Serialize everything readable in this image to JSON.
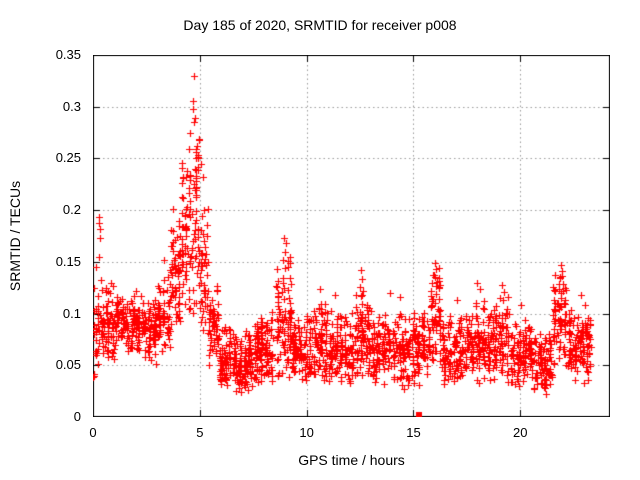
{
  "chart_data": {
    "type": "scatter",
    "title": "Day 185 of 2020, SRMTID for receiver p008",
    "xlabel": "GPS time / hours",
    "ylabel": "SRMTID / TECUs",
    "xlim": [
      0,
      24.2
    ],
    "ylim": [
      0,
      0.35
    ],
    "xticks": [
      {
        "v": 0,
        "label": "0"
      },
      {
        "v": 5,
        "label": "5"
      },
      {
        "v": 10,
        "label": "10"
      },
      {
        "v": 15,
        "label": "15"
      },
      {
        "v": 20,
        "label": "20"
      }
    ],
    "yticks": [
      {
        "v": 0,
        "label": "0"
      },
      {
        "v": 0.05,
        "label": "0.05"
      },
      {
        "v": 0.1,
        "label": "0.1"
      },
      {
        "v": 0.15,
        "label": "0.15"
      },
      {
        "v": 0.2,
        "label": "0.2"
      },
      {
        "v": 0.25,
        "label": "0.25"
      },
      {
        "v": 0.3,
        "label": "0.3"
      },
      {
        "v": 0.35,
        "label": "0.35"
      }
    ],
    "grid": true,
    "legend": "none",
    "marker": "plus",
    "marker_color": "#ff0000",
    "grid_color": "#999999",
    "axis_color": "#000000",
    "seed": 185,
    "envelope_segments": [
      [
        0.0,
        0.3,
        30,
        0.03,
        0.135
      ],
      [
        0.3,
        1.0,
        70,
        0.05,
        0.135
      ],
      [
        1.0,
        2.0,
        100,
        0.06,
        0.125
      ],
      [
        2.0,
        3.0,
        100,
        0.048,
        0.12
      ],
      [
        3.0,
        3.6,
        60,
        0.055,
        0.14
      ],
      [
        3.6,
        4.1,
        60,
        0.07,
        0.21
      ],
      [
        4.1,
        4.6,
        60,
        0.08,
        0.28
      ],
      [
        4.6,
        5.0,
        50,
        0.085,
        0.33
      ],
      [
        5.0,
        5.4,
        45,
        0.07,
        0.23
      ],
      [
        5.4,
        5.9,
        50,
        0.04,
        0.13
      ],
      [
        5.9,
        6.5,
        70,
        0.02,
        0.09
      ],
      [
        6.5,
        7.5,
        110,
        0.02,
        0.085
      ],
      [
        7.5,
        8.5,
        110,
        0.025,
        0.105
      ],
      [
        8.5,
        9.3,
        90,
        0.03,
        0.16
      ],
      [
        9.3,
        10.3,
        100,
        0.03,
        0.1
      ],
      [
        10.3,
        11.0,
        80,
        0.025,
        0.115
      ],
      [
        11.0,
        12.2,
        120,
        0.025,
        0.105
      ],
      [
        12.2,
        13.0,
        90,
        0.03,
        0.125
      ],
      [
        13.0,
        14.2,
        120,
        0.03,
        0.105
      ],
      [
        14.2,
        15.1,
        90,
        0.025,
        0.105
      ],
      [
        15.1,
        15.8,
        70,
        0.03,
        0.11
      ],
      [
        15.8,
        16.3,
        55,
        0.04,
        0.15
      ],
      [
        16.3,
        17.6,
        130,
        0.03,
        0.1
      ],
      [
        17.6,
        18.4,
        80,
        0.03,
        0.115
      ],
      [
        18.4,
        19.5,
        110,
        0.03,
        0.12
      ],
      [
        19.5,
        20.6,
        110,
        0.025,
        0.095
      ],
      [
        20.6,
        21.5,
        90,
        0.015,
        0.09
      ],
      [
        21.5,
        22.2,
        70,
        0.04,
        0.148
      ],
      [
        22.2,
        23.3,
        120,
        0.03,
        0.105
      ]
    ],
    "outlier_points": [
      [
        0.28,
        0.193
      ],
      [
        0.3,
        0.188
      ],
      [
        0.31,
        0.182
      ],
      [
        0.33,
        0.173
      ],
      [
        0.3,
        0.155
      ],
      [
        0.12,
        0.145
      ],
      [
        3.3,
        0.152
      ],
      [
        4.73,
        0.33
      ],
      [
        4.66,
        0.306
      ],
      [
        4.7,
        0.298
      ],
      [
        4.79,
        0.289
      ],
      [
        4.55,
        0.275
      ],
      [
        4.85,
        0.262
      ],
      [
        5.05,
        0.245
      ],
      [
        5.15,
        0.232
      ],
      [
        8.95,
        0.173
      ],
      [
        9.02,
        0.168
      ],
      [
        9.0,
        0.16
      ],
      [
        8.9,
        0.152
      ],
      [
        10.62,
        0.124
      ],
      [
        11.35,
        0.118
      ],
      [
        12.55,
        0.142
      ],
      [
        12.6,
        0.133
      ],
      [
        12.48,
        0.126
      ],
      [
        13.92,
        0.12
      ],
      [
        14.38,
        0.116
      ],
      [
        16.02,
        0.149
      ],
      [
        16.07,
        0.143
      ],
      [
        15.97,
        0.137
      ],
      [
        16.12,
        0.131
      ],
      [
        17.05,
        0.113
      ],
      [
        17.98,
        0.13
      ],
      [
        18.1,
        0.124
      ],
      [
        19.15,
        0.128
      ],
      [
        19.25,
        0.121
      ],
      [
        20.05,
        0.108
      ],
      [
        21.9,
        0.147
      ],
      [
        21.95,
        0.141
      ],
      [
        21.85,
        0.135
      ],
      [
        22.0,
        0.129
      ],
      [
        21.8,
        0.124
      ],
      [
        22.85,
        0.118
      ],
      [
        23.05,
        0.108
      ]
    ],
    "square_point": [
      15.25,
      0.0015
    ]
  }
}
